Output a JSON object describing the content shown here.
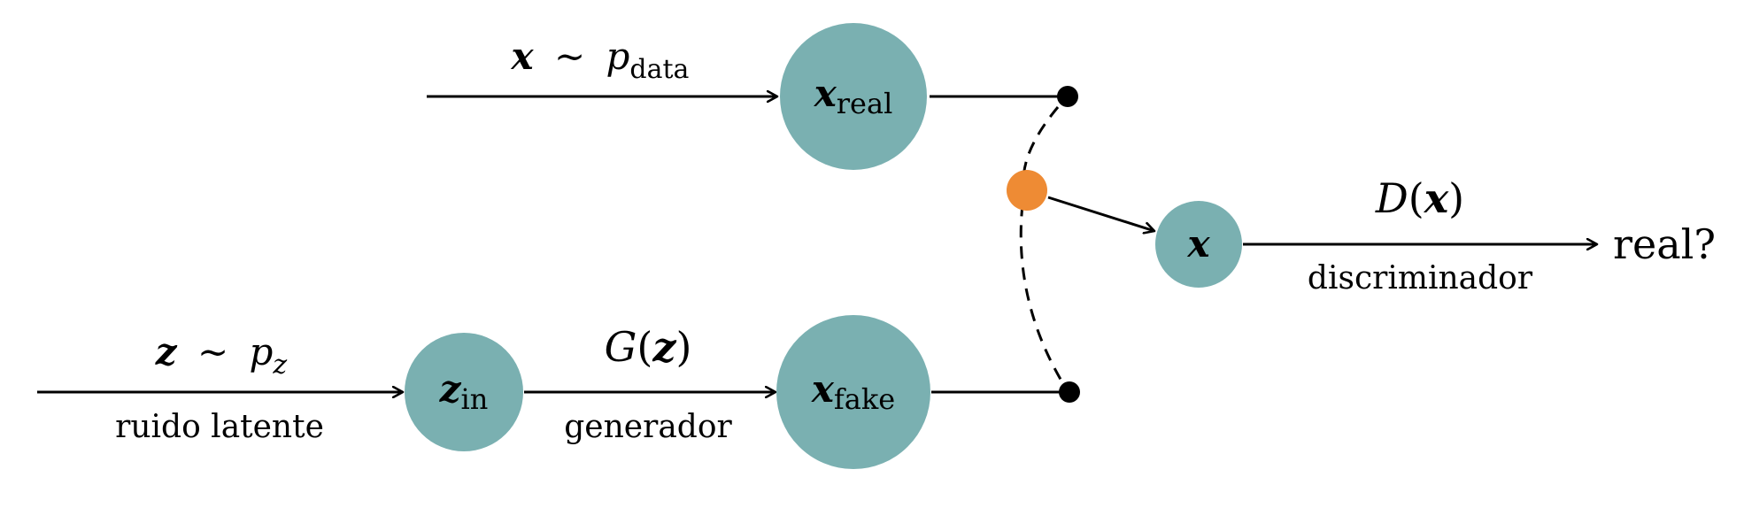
{
  "colors": {
    "node_fill": "#7AB0B1",
    "switch_fill": "#EE8B34",
    "line": "#000000"
  },
  "nodes": {
    "x_real": {
      "main": "x",
      "sub": "real"
    },
    "z_in": {
      "main": "z",
      "sub": "in"
    },
    "x_fake": {
      "main": "x",
      "sub": "fake"
    },
    "x_out": {
      "main": "x"
    }
  },
  "edges": {
    "data": {
      "var": "x",
      "tilde": "~",
      "p": "p",
      "sub": "data"
    },
    "noise": {
      "var": "z",
      "tilde": "~",
      "p": "p",
      "sub": "z",
      "label": "ruido latente"
    },
    "generator": {
      "fn": "G",
      "open": "(",
      "arg": "z",
      "close": ")",
      "label": "generador"
    },
    "discriminator": {
      "fn": "D",
      "open": "(",
      "arg": "x",
      "close": ")",
      "label": "discriminador"
    }
  },
  "output": {
    "label": "real?"
  }
}
